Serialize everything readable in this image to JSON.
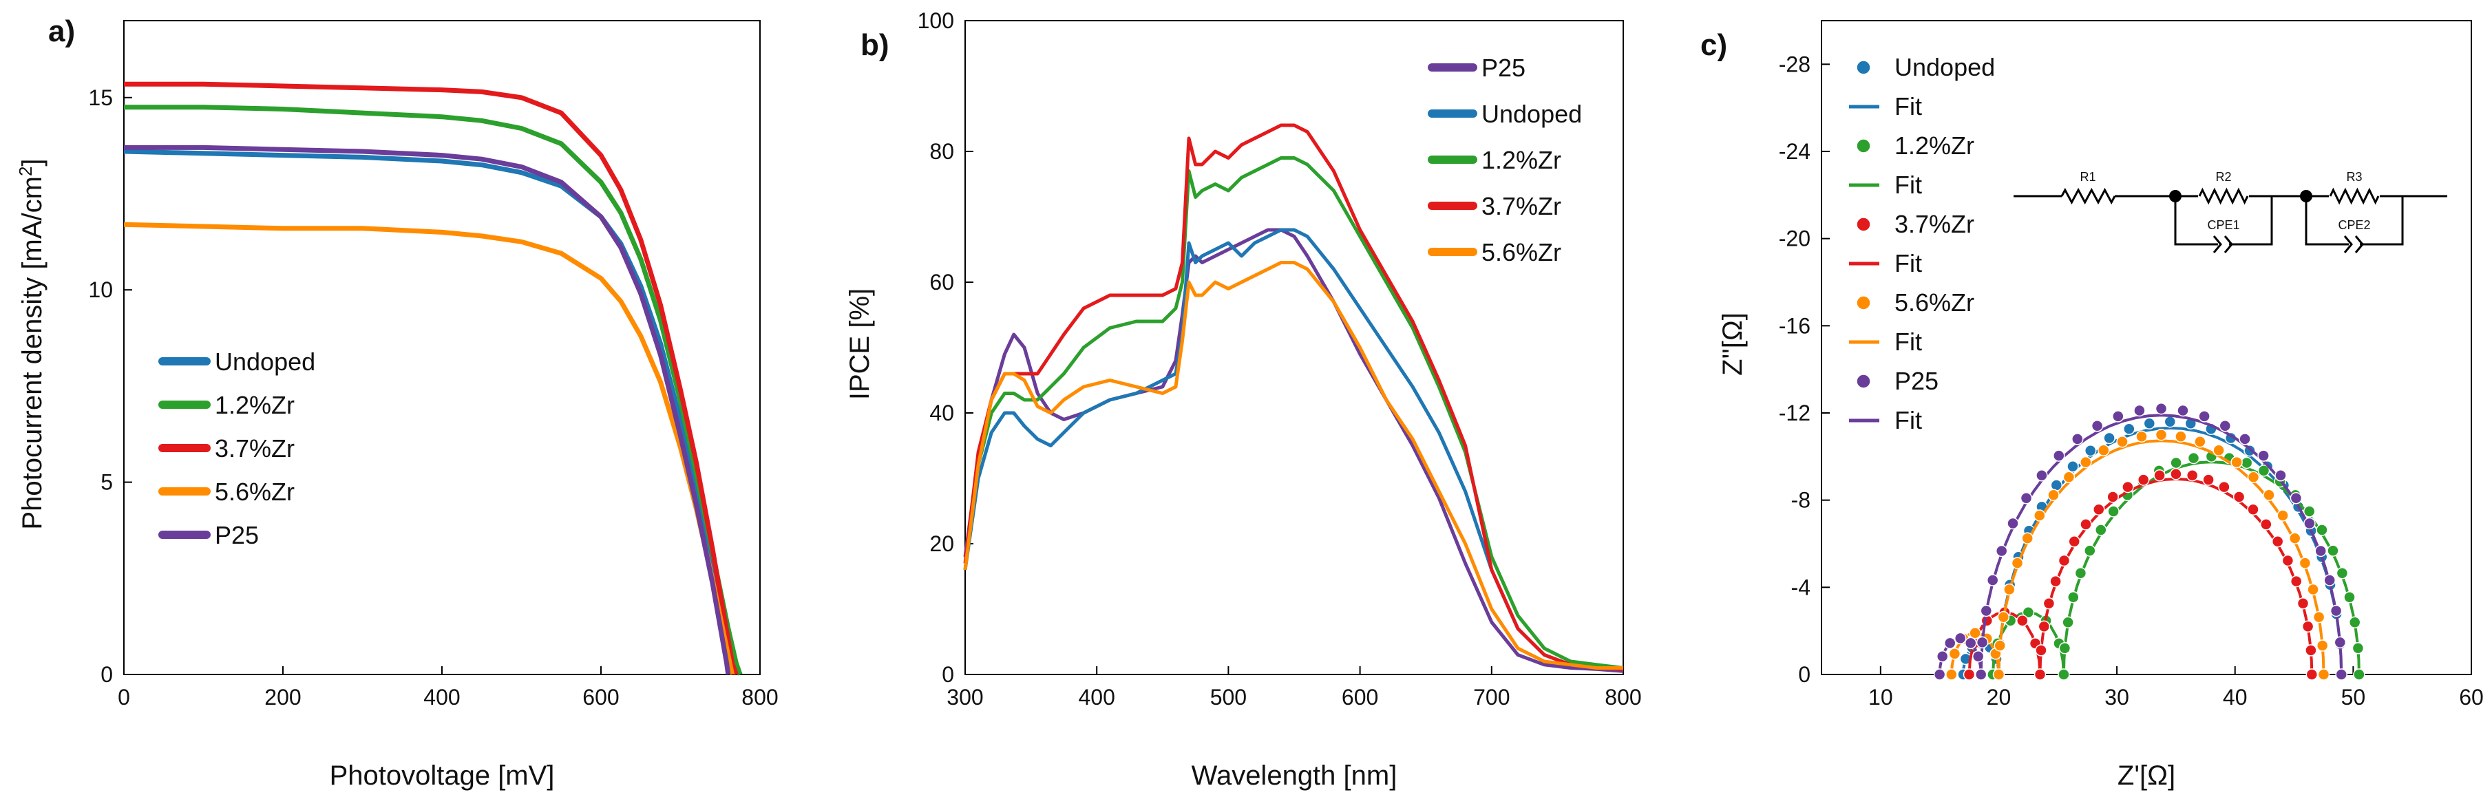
{
  "colors": {
    "undoped": "#1f77b4",
    "zr12": "#2ca02c",
    "zr37": "#e31a1c",
    "zr56": "#ff8c00",
    "p25": "#6a3d9a"
  },
  "chart_data": [
    {
      "panel": "a)",
      "type": "line",
      "xlabel": "Photovoltage [mV]",
      "ylabel_main": "Photocurrent density [mA/cm",
      "ylabel_sup": "2",
      "ylabel_end": "]",
      "xlim": [
        0,
        800
      ],
      "ylim": [
        0,
        17
      ],
      "xticks": [
        0,
        200,
        400,
        600,
        800
      ],
      "yticks": [
        0,
        5,
        10,
        15
      ],
      "legend_position": "lower-left",
      "series": [
        {
          "name": "Undoped",
          "color_key": "undoped",
          "x": [
            0,
            100,
            200,
            300,
            400,
            450,
            500,
            550,
            600,
            625,
            650,
            675,
            700,
            720,
            740,
            760,
            770,
            775
          ],
          "y": [
            13.6,
            13.55,
            13.5,
            13.45,
            13.35,
            13.25,
            13.05,
            12.7,
            11.9,
            11.2,
            10.1,
            8.6,
            6.6,
            4.8,
            2.9,
            1.0,
            0.2,
            0
          ]
        },
        {
          "name": "1.2%Zr",
          "color_key": "zr12",
          "x": [
            0,
            100,
            200,
            300,
            400,
            450,
            500,
            550,
            600,
            625,
            650,
            675,
            700,
            720,
            740,
            760,
            770,
            775
          ],
          "y": [
            14.75,
            14.75,
            14.7,
            14.6,
            14.5,
            14.4,
            14.2,
            13.8,
            12.8,
            12.0,
            10.8,
            9.2,
            7.1,
            5.2,
            3.2,
            1.2,
            0.3,
            0
          ]
        },
        {
          "name": "3.7%Zr",
          "color_key": "zr37",
          "x": [
            0,
            100,
            200,
            300,
            400,
            450,
            500,
            550,
            600,
            625,
            650,
            675,
            700,
            720,
            740,
            755,
            765,
            770
          ],
          "y": [
            15.35,
            15.35,
            15.3,
            15.25,
            15.2,
            15.15,
            15.0,
            14.6,
            13.5,
            12.6,
            11.3,
            9.6,
            7.4,
            5.5,
            3.3,
            1.5,
            0.3,
            0
          ]
        },
        {
          "name": "5.6%Zr",
          "color_key": "zr56",
          "x": [
            0,
            100,
            200,
            300,
            400,
            450,
            500,
            550,
            600,
            625,
            650,
            675,
            700,
            720,
            740,
            755,
            762,
            765
          ],
          "y": [
            11.7,
            11.65,
            11.6,
            11.6,
            11.5,
            11.4,
            11.25,
            10.95,
            10.3,
            9.7,
            8.8,
            7.6,
            5.9,
            4.3,
            2.5,
            1.0,
            0.3,
            0
          ]
        },
        {
          "name": "P25",
          "color_key": "p25",
          "x": [
            0,
            100,
            200,
            300,
            400,
            450,
            500,
            550,
            600,
            625,
            650,
            675,
            700,
            720,
            740,
            752,
            758,
            760
          ],
          "y": [
            13.7,
            13.7,
            13.65,
            13.6,
            13.5,
            13.4,
            13.2,
            12.8,
            11.9,
            11.1,
            9.9,
            8.3,
            6.2,
            4.4,
            2.4,
            1.0,
            0.3,
            0
          ]
        }
      ]
    },
    {
      "panel": "b)",
      "type": "line",
      "xlabel": "Wavelength [nm]",
      "ylabel": "IPCE [%]",
      "xlim": [
        300,
        800
      ],
      "ylim": [
        0,
        100
      ],
      "xticks": [
        300,
        400,
        500,
        600,
        700,
        800
      ],
      "yticks": [
        0,
        20,
        40,
        60,
        80,
        100
      ],
      "legend_position": "top-right",
      "series": [
        {
          "name": "P25",
          "color_key": "p25",
          "x": [
            300,
            310,
            320,
            330,
            337,
            345,
            355,
            365,
            375,
            390,
            410,
            430,
            450,
            460,
            465,
            470,
            475,
            480,
            490,
            500,
            510,
            520,
            530,
            540,
            550,
            560,
            580,
            600,
            620,
            640,
            660,
            680,
            700,
            720,
            740,
            760,
            780,
            800
          ],
          "y": [
            18,
            33,
            42,
            49,
            52,
            50,
            43,
            40,
            39,
            40,
            42,
            43,
            44,
            48,
            55,
            63,
            64,
            63,
            64,
            65,
            66,
            67,
            68,
            68,
            67,
            64,
            57,
            49,
            42,
            35,
            27,
            17,
            8,
            3,
            1.5,
            1,
            0.8,
            0.5
          ]
        },
        {
          "name": "Undoped",
          "color_key": "undoped",
          "x": [
            300,
            310,
            320,
            330,
            337,
            345,
            355,
            365,
            375,
            390,
            410,
            430,
            450,
            460,
            465,
            470,
            475,
            480,
            490,
            500,
            510,
            520,
            530,
            540,
            550,
            560,
            580,
            600,
            620,
            640,
            660,
            680,
            700,
            720,
            740,
            760,
            780,
            800
          ],
          "y": [
            16,
            30,
            37,
            40,
            40,
            38,
            36,
            35,
            37,
            40,
            42,
            43,
            45,
            46,
            52,
            66,
            63,
            64,
            65,
            66,
            64,
            66,
            67,
            68,
            68,
            67,
            62,
            56,
            50,
            44,
            37,
            28,
            16,
            7,
            3,
            1.5,
            1,
            0.8
          ]
        },
        {
          "name": "1.2%Zr",
          "color_key": "zr12",
          "x": [
            300,
            310,
            320,
            330,
            337,
            345,
            355,
            365,
            375,
            390,
            410,
            430,
            450,
            460,
            465,
            470,
            475,
            480,
            490,
            500,
            510,
            520,
            530,
            540,
            550,
            560,
            580,
            600,
            620,
            640,
            660,
            680,
            700,
            720,
            740,
            760,
            780,
            800
          ],
          "y": [
            16,
            32,
            40,
            43,
            43,
            42,
            42,
            44,
            46,
            50,
            53,
            54,
            54,
            56,
            60,
            77,
            73,
            74,
            75,
            74,
            76,
            77,
            78,
            79,
            79,
            78,
            74,
            67,
            60,
            53,
            44,
            34,
            18,
            9,
            4,
            2,
            1.5,
            1
          ]
        },
        {
          "name": "3.7%Zr",
          "color_key": "zr37",
          "x": [
            300,
            310,
            320,
            330,
            337,
            345,
            355,
            365,
            375,
            390,
            410,
            430,
            450,
            460,
            465,
            470,
            475,
            480,
            490,
            500,
            510,
            520,
            530,
            540,
            550,
            560,
            580,
            600,
            620,
            640,
            660,
            680,
            700,
            720,
            740,
            760,
            780,
            800
          ],
          "y": [
            17,
            34,
            42,
            46,
            46,
            46,
            46,
            49,
            52,
            56,
            58,
            58,
            58,
            59,
            63,
            82,
            78,
            78,
            80,
            79,
            81,
            82,
            83,
            84,
            84,
            83,
            77,
            68,
            61,
            54,
            45,
            35,
            16,
            7,
            3,
            1.5,
            1,
            0.8
          ]
        },
        {
          "name": "5.6%Zr",
          "color_key": "zr56",
          "x": [
            300,
            310,
            320,
            330,
            337,
            345,
            355,
            365,
            375,
            390,
            410,
            430,
            450,
            460,
            465,
            470,
            475,
            480,
            490,
            500,
            510,
            520,
            530,
            540,
            550,
            560,
            580,
            600,
            620,
            640,
            660,
            680,
            700,
            720,
            740,
            760,
            780,
            800
          ],
          "y": [
            16,
            32,
            42,
            46,
            46,
            45,
            41,
            40,
            42,
            44,
            45,
            44,
            43,
            44,
            51,
            60,
            58,
            58,
            60,
            59,
            60,
            61,
            62,
            63,
            63,
            62,
            57,
            50,
            42,
            36,
            28,
            20,
            10,
            4,
            2,
            1.5,
            1,
            1
          ]
        }
      ]
    },
    {
      "panel": "c)",
      "type": "scatter",
      "xlabel": "Z'[Ω]",
      "ylabel": "Z''[Ω]",
      "xlim": [
        5,
        60
      ],
      "ylim": [
        0,
        30
      ],
      "xticks": [
        10,
        20,
        30,
        40,
        50,
        60
      ],
      "yticks": [
        0,
        4,
        8,
        12,
        16,
        20,
        24,
        28
      ],
      "ytick_labels": [
        "0",
        "-4",
        "-8",
        "-12",
        "-16",
        "-20",
        "-24",
        "-28"
      ],
      "legend_position": "top-left",
      "legend": [
        {
          "label": "Undoped",
          "kind": "marker",
          "color_key": "undoped"
        },
        {
          "label": "Fit",
          "kind": "line",
          "color_key": "undoped"
        },
        {
          "label": "1.2%Zr",
          "kind": "marker",
          "color_key": "zr12"
        },
        {
          "label": "Fit",
          "kind": "line",
          "color_key": "zr12"
        },
        {
          "label": "3.7%Zr",
          "kind": "marker",
          "color_key": "zr37"
        },
        {
          "label": "Fit",
          "kind": "line",
          "color_key": "zr37"
        },
        {
          "label": "5.6%Zr",
          "kind": "marker",
          "color_key": "zr56"
        },
        {
          "label": "Fit",
          "kind": "line",
          "color_key": "zr56"
        },
        {
          "label": "P25",
          "kind": "marker",
          "color_key": "p25"
        },
        {
          "label": "Fit",
          "kind": "line",
          "color_key": "p25"
        }
      ],
      "circuit_labels": {
        "r1": "R1",
        "r2": "R2",
        "r3": "R3",
        "cpe1": "CPE1",
        "cpe2": "CPE2"
      },
      "series": [
        {
          "name": "Undoped",
          "color_key": "undoped",
          "r0": 17,
          "r1": 20,
          "r2": 49
        },
        {
          "name": "1.2%Zr",
          "color_key": "zr12",
          "r0": 19.5,
          "r1": 25.5,
          "r2": 50.5
        },
        {
          "name": "3.7%Zr",
          "color_key": "zr37",
          "r0": 17.5,
          "r1": 23.5,
          "r2": 46.5
        },
        {
          "name": "5.6%Zr",
          "color_key": "zr56",
          "r0": 16,
          "r1": 20,
          "r2": 47.5
        },
        {
          "name": "P25",
          "color_key": "p25",
          "r0": 15,
          "r1": 18.5,
          "r2": 49
        }
      ]
    }
  ]
}
